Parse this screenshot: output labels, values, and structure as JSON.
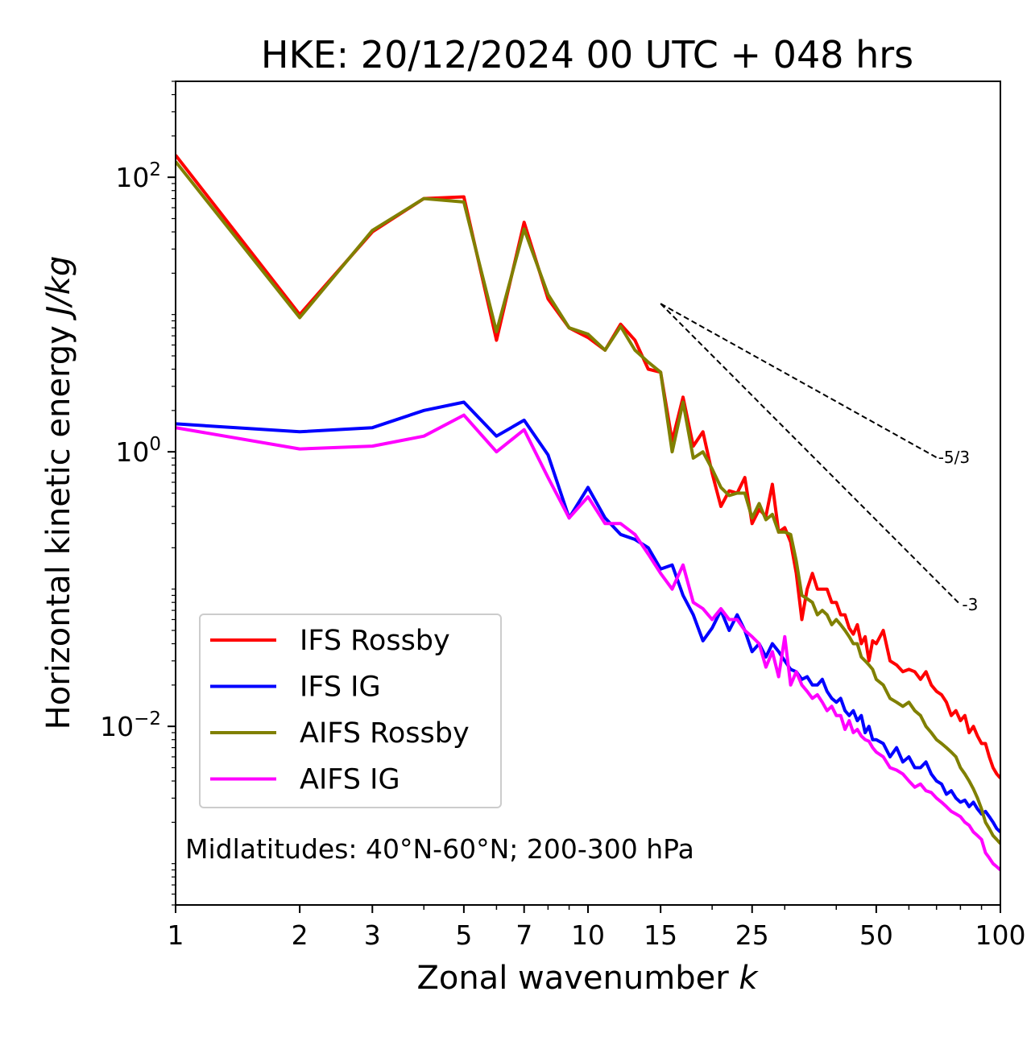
{
  "chart_data": {
    "type": "line",
    "title": "HKE: 20/12/2024 00 UTC + 048 hrs",
    "xlabel_main": "Zonal wavenumber ",
    "xlabel_var": "k",
    "ylabel_main": "Horizontal kinetic energy ",
    "ylabel_unit": "J/kg",
    "x_scale": "log",
    "y_scale": "log",
    "xlim": [
      1,
      100
    ],
    "ylim": [
      0.0005,
      500
    ],
    "x_ticks": [
      {
        "value": 1,
        "label": "1"
      },
      {
        "value": 2,
        "label": "2"
      },
      {
        "value": 3,
        "label": "3"
      },
      {
        "value": 5,
        "label": "5"
      },
      {
        "value": 7,
        "label": "7"
      },
      {
        "value": 10,
        "label": "10"
      },
      {
        "value": 15,
        "label": "15"
      },
      {
        "value": 25,
        "label": "25"
      },
      {
        "value": 50,
        "label": "50"
      },
      {
        "value": 100,
        "label": "100"
      }
    ],
    "y_ticks": [
      {
        "value": 0.01,
        "base": "10",
        "exp": "−2"
      },
      {
        "value": 1,
        "base": "10",
        "exp": "0"
      },
      {
        "value": 100,
        "base": "10",
        "exp": "2"
      }
    ],
    "grid": false,
    "legend_position": "lower-left",
    "annotation": "Midlatitudes: 40°N-60°N; 200-300 hPa",
    "reference_lines": [
      {
        "label": "-5/3",
        "x": [
          15,
          70
        ],
        "y": [
          12.0,
          0.91
        ]
      },
      {
        "label": "-3",
        "x": [
          15,
          80
        ],
        "y": [
          12.0,
          0.077
        ]
      }
    ],
    "series": [
      {
        "name": "IFS Rossby",
        "color": "#ff0000",
        "x": [
          1,
          2,
          3,
          4,
          5,
          6,
          7,
          8,
          9,
          10,
          11,
          12,
          13,
          14,
          15,
          16,
          17,
          18,
          19,
          20,
          21,
          22,
          23,
          24,
          25,
          26,
          27,
          28,
          29,
          30,
          31,
          32,
          33,
          34,
          35,
          36,
          37,
          38,
          39,
          40,
          41,
          42,
          43,
          44,
          45,
          46,
          47,
          48,
          49,
          50,
          52,
          54,
          56,
          58,
          60,
          62,
          64,
          66,
          68,
          70,
          72,
          74,
          76,
          78,
          80,
          82,
          84,
          86,
          88,
          90,
          92,
          94,
          96,
          98,
          100
        ],
        "y": [
          145,
          10.0,
          40.0,
          70,
          72,
          6.5,
          47,
          13.0,
          8.0,
          6.8,
          5.5,
          8.5,
          6.5,
          4.0,
          3.8,
          1.2,
          2.5,
          1.1,
          1.4,
          0.7,
          0.4,
          0.52,
          0.5,
          0.65,
          0.3,
          0.38,
          0.34,
          0.58,
          0.26,
          0.28,
          0.22,
          0.13,
          0.06,
          0.1,
          0.13,
          0.1,
          0.1,
          0.1,
          0.08,
          0.08,
          0.065,
          0.065,
          0.052,
          0.047,
          0.055,
          0.04,
          0.045,
          0.03,
          0.042,
          0.04,
          0.05,
          0.03,
          0.028,
          0.025,
          0.026,
          0.025,
          0.022,
          0.025,
          0.02,
          0.018,
          0.017,
          0.015,
          0.012,
          0.013,
          0.011,
          0.012,
          0.009,
          0.01,
          0.0085,
          0.0075,
          0.0075,
          0.006,
          0.005,
          0.0045,
          0.0042
        ]
      },
      {
        "name": "IFS IG",
        "color": "#0000ff",
        "x": [
          1,
          2,
          3,
          4,
          5,
          6,
          7,
          8,
          9,
          10,
          11,
          12,
          13,
          14,
          15,
          16,
          17,
          18,
          19,
          20,
          21,
          22,
          23,
          24,
          25,
          26,
          27,
          28,
          29,
          30,
          31,
          32,
          33,
          34,
          35,
          36,
          37,
          38,
          39,
          40,
          41,
          42,
          43,
          44,
          45,
          46,
          47,
          48,
          49,
          50,
          52,
          54,
          56,
          58,
          60,
          62,
          64,
          66,
          68,
          70,
          72,
          74,
          76,
          78,
          80,
          82,
          84,
          86,
          88,
          90,
          92,
          94,
          96,
          98,
          100
        ],
        "y": [
          1.6,
          1.4,
          1.5,
          2.0,
          2.3,
          1.3,
          1.7,
          0.95,
          0.33,
          0.55,
          0.33,
          0.25,
          0.23,
          0.2,
          0.14,
          0.15,
          0.09,
          0.065,
          0.042,
          0.052,
          0.07,
          0.05,
          0.065,
          0.05,
          0.035,
          0.04,
          0.032,
          0.04,
          0.035,
          0.03,
          0.026,
          0.025,
          0.022,
          0.023,
          0.02,
          0.02,
          0.022,
          0.018,
          0.016,
          0.015,
          0.016,
          0.013,
          0.012,
          0.013,
          0.011,
          0.012,
          0.009,
          0.01,
          0.008,
          0.008,
          0.0075,
          0.006,
          0.007,
          0.0055,
          0.006,
          0.005,
          0.005,
          0.0055,
          0.0045,
          0.004,
          0.0038,
          0.0032,
          0.0034,
          0.003,
          0.0028,
          0.0029,
          0.0026,
          0.0028,
          0.0025,
          0.0023,
          0.0024,
          0.0022,
          0.002,
          0.0018,
          0.0017
        ]
      },
      {
        "name": "AIFS Rossby",
        "color": "#808000",
        "x": [
          1,
          2,
          3,
          4,
          5,
          6,
          7,
          8,
          9,
          10,
          11,
          12,
          13,
          14,
          15,
          16,
          17,
          18,
          19,
          20,
          21,
          22,
          23,
          24,
          25,
          26,
          27,
          28,
          29,
          30,
          31,
          32,
          33,
          34,
          35,
          36,
          37,
          38,
          39,
          40,
          41,
          42,
          43,
          44,
          45,
          46,
          47,
          48,
          49,
          50,
          52,
          54,
          56,
          58,
          60,
          62,
          64,
          66,
          68,
          70,
          72,
          74,
          76,
          78,
          80,
          82,
          84,
          86,
          88,
          90,
          92,
          94,
          96,
          98,
          100
        ],
        "y": [
          130,
          9.5,
          41.0,
          70,
          66,
          7.5,
          42,
          14.0,
          8.0,
          7.2,
          5.5,
          8.2,
          5.5,
          4.5,
          3.8,
          1.0,
          2.3,
          0.9,
          1.0,
          0.75,
          0.55,
          0.48,
          0.5,
          0.5,
          0.33,
          0.42,
          0.32,
          0.35,
          0.26,
          0.26,
          0.25,
          0.16,
          0.09,
          0.085,
          0.08,
          0.065,
          0.07,
          0.065,
          0.055,
          0.06,
          0.055,
          0.05,
          0.045,
          0.04,
          0.04,
          0.032,
          0.03,
          0.028,
          0.026,
          0.022,
          0.02,
          0.016,
          0.015,
          0.014,
          0.015,
          0.013,
          0.012,
          0.01,
          0.009,
          0.008,
          0.0075,
          0.007,
          0.0065,
          0.006,
          0.005,
          0.0045,
          0.004,
          0.0035,
          0.003,
          0.0025,
          0.002,
          0.0018,
          0.0016,
          0.0015,
          0.0014
        ]
      },
      {
        "name": "AIFS IG",
        "color": "#ff00ff",
        "x": [
          1,
          2,
          3,
          4,
          5,
          6,
          7,
          8,
          9,
          10,
          11,
          12,
          13,
          14,
          15,
          16,
          17,
          18,
          19,
          20,
          21,
          22,
          23,
          24,
          25,
          26,
          27,
          28,
          29,
          30,
          31,
          32,
          33,
          34,
          35,
          36,
          37,
          38,
          39,
          40,
          41,
          42,
          43,
          44,
          45,
          46,
          47,
          48,
          49,
          50,
          52,
          54,
          56,
          58,
          60,
          62,
          64,
          66,
          68,
          70,
          72,
          74,
          76,
          78,
          80,
          82,
          84,
          86,
          88,
          90,
          92,
          94,
          96,
          98,
          100
        ],
        "y": [
          1.5,
          1.05,
          1.1,
          1.3,
          1.85,
          1.0,
          1.45,
          0.65,
          0.33,
          0.47,
          0.3,
          0.3,
          0.25,
          0.18,
          0.13,
          0.1,
          0.15,
          0.08,
          0.072,
          0.06,
          0.072,
          0.06,
          0.06,
          0.05,
          0.045,
          0.04,
          0.027,
          0.035,
          0.023,
          0.045,
          0.02,
          0.025,
          0.02,
          0.018,
          0.016,
          0.017,
          0.015,
          0.013,
          0.014,
          0.012,
          0.012,
          0.0095,
          0.011,
          0.009,
          0.0095,
          0.0085,
          0.008,
          0.0078,
          0.007,
          0.0065,
          0.006,
          0.005,
          0.0048,
          0.0045,
          0.004,
          0.0036,
          0.0038,
          0.0034,
          0.0033,
          0.003,
          0.0028,
          0.0026,
          0.0024,
          0.0023,
          0.0022,
          0.002,
          0.0019,
          0.0017,
          0.0016,
          0.0015,
          0.0012,
          0.0011,
          0.001,
          0.00095,
          0.0009
        ]
      }
    ]
  }
}
